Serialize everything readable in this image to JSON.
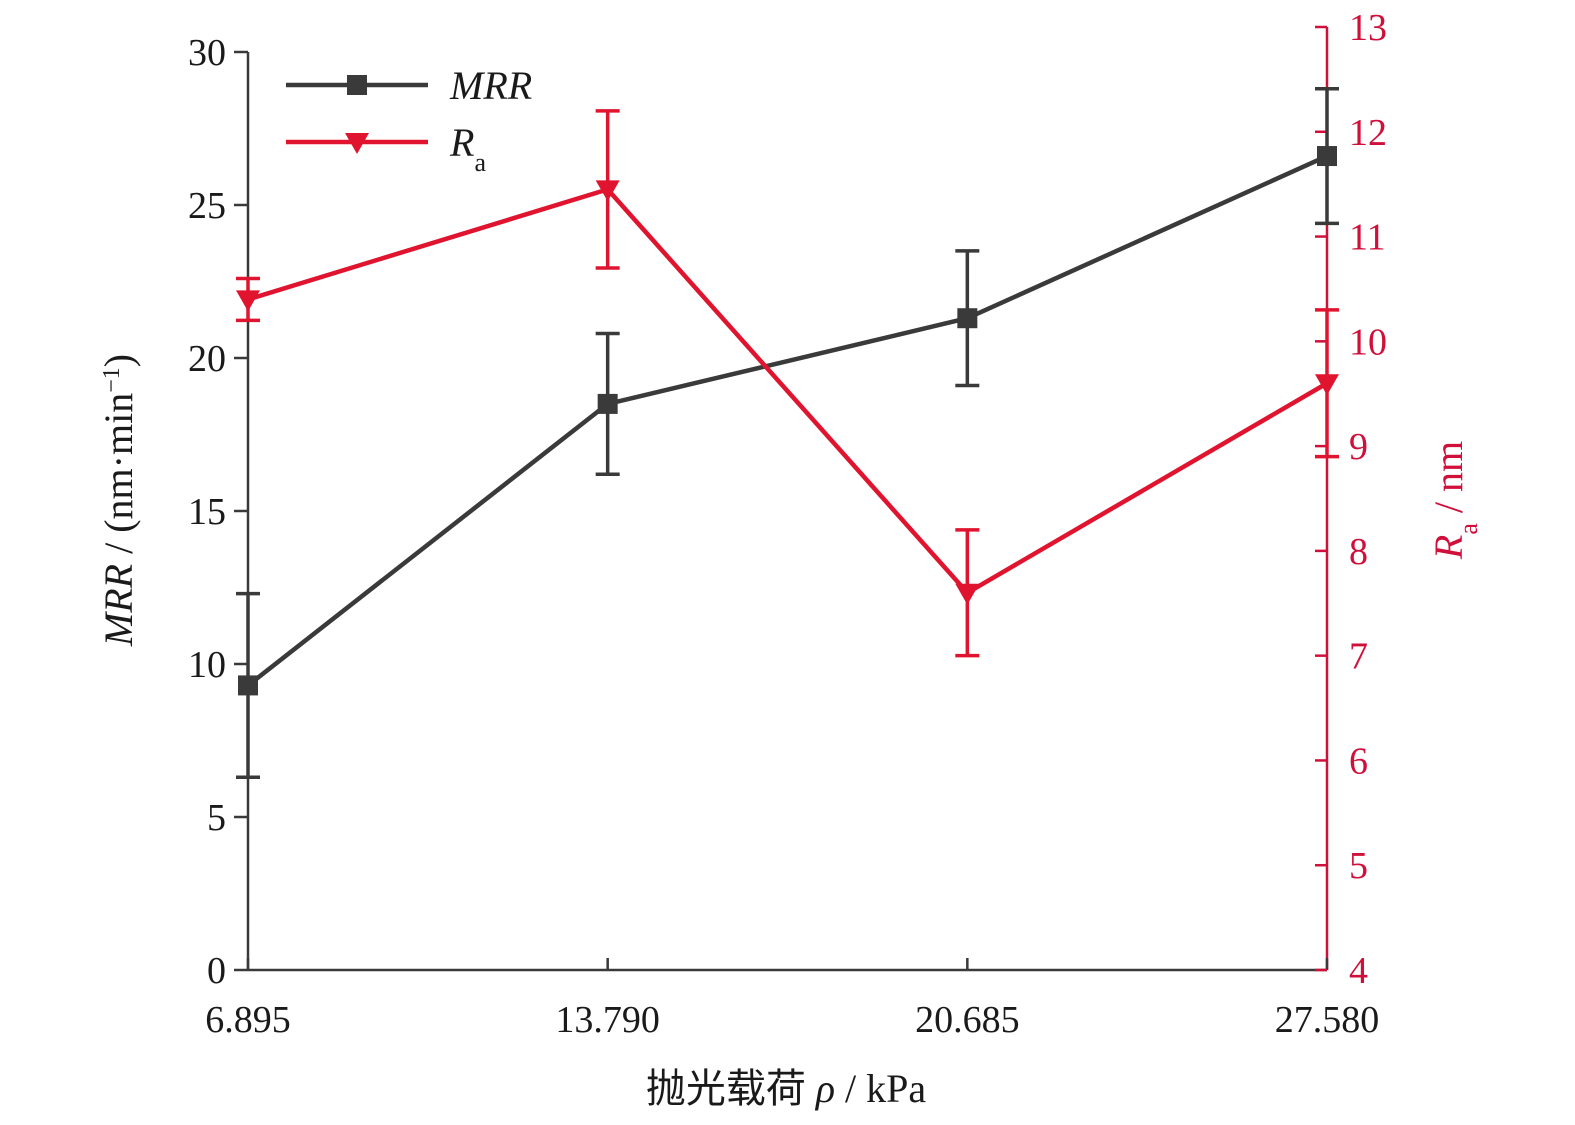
{
  "chart_data": {
    "type": "line",
    "x": [
      6.895,
      13.79,
      20.685,
      27.58
    ],
    "x_tick_labels": [
      "6.895",
      "13.790",
      "20.685",
      "27.580"
    ],
    "xlabel": "抛光载荷 ρ / kPa",
    "ylabel_left": "MRR / (nm·min⁻¹)",
    "ylabel_right": "Ra / nm",
    "ylim_left": [
      0,
      30
    ],
    "y_ticks_left": [
      0,
      5,
      10,
      15,
      20,
      25,
      30
    ],
    "ylim_right": [
      4,
      13
    ],
    "y_ticks_right": [
      4,
      5,
      6,
      7,
      8,
      9,
      10,
      11,
      12,
      13
    ],
    "grid": false,
    "legend_position": "top-left",
    "series": [
      {
        "name": "MRR",
        "axis": "left",
        "marker": "square",
        "color": "#3a3a3a",
        "values": [
          9.3,
          18.5,
          21.3,
          26.6
        ],
        "errors": [
          3.0,
          2.3,
          2.2,
          2.2
        ]
      },
      {
        "name": "Ra",
        "axis": "right",
        "marker": "triangle-down",
        "color": "#e0142f",
        "values": [
          10.4,
          11.45,
          7.6,
          9.6
        ],
        "errors": [
          0.2,
          0.75,
          0.6,
          0.7
        ]
      }
    ]
  }
}
